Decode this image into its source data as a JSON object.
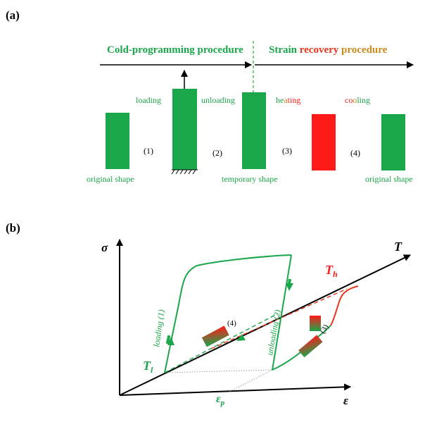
{
  "panel_a": {
    "label": "(a)",
    "header_cold": "Cold-programming procedure",
    "header_recovery_parts": [
      "Strain ",
      "recovery",
      " procedure"
    ],
    "step_labels": [
      "(1)",
      "(2)",
      "(3)",
      "(4)"
    ],
    "loading": "loading",
    "unloading": "unloading",
    "heating_parts": [
      "he",
      "a",
      "ting"
    ],
    "cooling_parts": [
      "co",
      "o",
      "ling"
    ],
    "original_shape": "original shape",
    "temporary_shape": "temporary shape",
    "original_shape_2": "original shape"
  },
  "panel_b": {
    "label": "(b)",
    "axis_sigma": "σ",
    "axis_T": "T",
    "axis_epsilon": "ε",
    "Th_main": "T",
    "Th_sub": "h",
    "Tl_main": "T",
    "Tl_sub": "l",
    "ep_main": "ε",
    "ep_sub": "p",
    "loading_label": "loading (1)",
    "unloading_label": "unloading (2)",
    "step3": "(3)",
    "step4": "(4)"
  },
  "colors": {
    "green": "#1aa64a",
    "red": "#ff1a1a",
    "black": "#000000"
  }
}
